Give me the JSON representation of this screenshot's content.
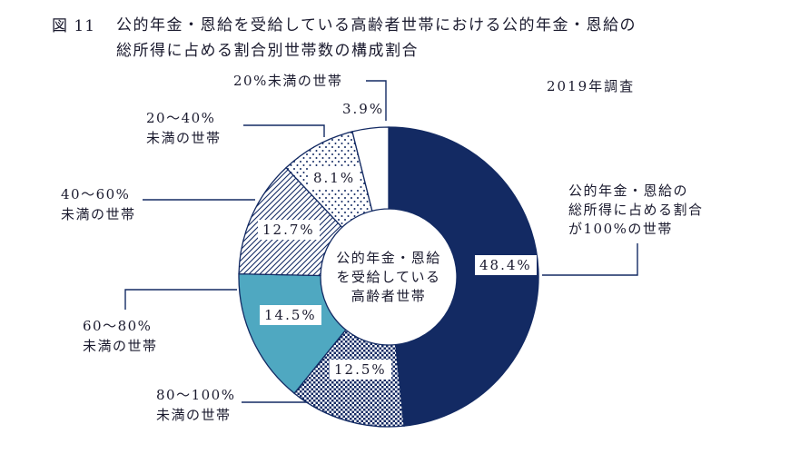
{
  "header": {
    "figure_label": "図 11",
    "title_line1": "公的年金・恩給を受給している高齢者世帯における公的年金・恩給の",
    "title_line2": "総所得に占める割合別世帯数の構成割合",
    "survey_note": "2019年調査"
  },
  "chart_data": {
    "type": "pie",
    "subtype": "donut",
    "title": "公的年金・恩給を受給している高齢者世帯における公的年金・恩給の総所得に占める割合別世帯数の構成割合",
    "survey": "2019年調査",
    "unit": "%",
    "start_angle_deg": 0,
    "direction": "clockwise",
    "center_label_lines": [
      "公的年金・恩給",
      "を受給している",
      "高齢者世帯"
    ],
    "colors": {
      "navy": "#132a63",
      "teal": "#4fa8c1",
      "white": "#ffffff",
      "text": "#1a1a2e"
    },
    "slices": [
      {
        "name": "ratio-100",
        "label": "公的年金・恩給の総所得に占める割合が100%の世帯",
        "callout_lines": [
          "公的年金・恩給の",
          "総所得に占める割合",
          "が100%の世帯"
        ],
        "value": 48.4,
        "value_label": "48.4%",
        "pattern": "solid-navy"
      },
      {
        "name": "ratio-80-100",
        "label": "80〜100%未満の世帯",
        "callout_lines": [
          "80〜100%",
          "未満の世帯"
        ],
        "value": 12.5,
        "value_label": "12.5%",
        "pattern": "checker"
      },
      {
        "name": "ratio-60-80",
        "label": "60〜80%未満の世帯",
        "callout_lines": [
          "60〜80%",
          "未満の世帯"
        ],
        "value": 14.5,
        "value_label": "14.5%",
        "pattern": "solid-teal"
      },
      {
        "name": "ratio-40-60",
        "label": "40〜60%未満の世帯",
        "callout_lines": [
          "40〜60%",
          "未満の世帯"
        ],
        "value": 12.7,
        "value_label": "12.7%",
        "pattern": "diagonal"
      },
      {
        "name": "ratio-20-40",
        "label": "20〜40%未満の世帯",
        "callout_lines": [
          "20〜40%",
          "未満の世帯"
        ],
        "value": 8.1,
        "value_label": "8.1%",
        "pattern": "dots"
      },
      {
        "name": "ratio-under-20",
        "label": "20%未満の世帯",
        "callout_lines": [
          "20%未満の世帯"
        ],
        "value": 3.9,
        "value_label": "3.9%",
        "pattern": "white"
      }
    ]
  }
}
